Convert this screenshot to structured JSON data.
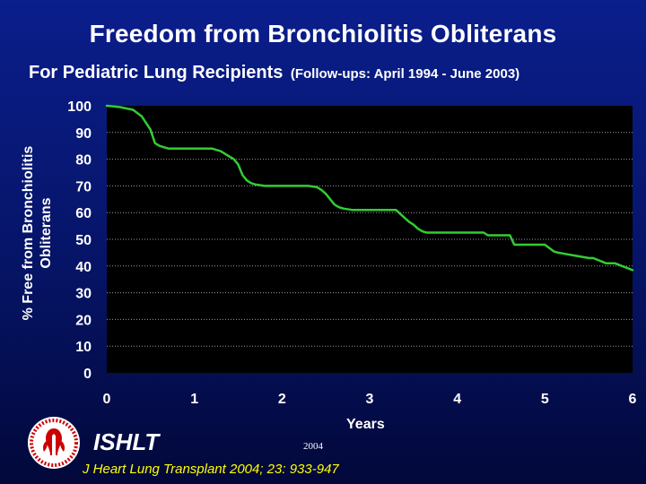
{
  "title": "Freedom from Bronchiolitis Obliterans",
  "subtitle": "For Pediatric Lung Recipients",
  "followup": "(Follow-ups: April 1994 - June 2003)",
  "footer": {
    "org": "ISHLT",
    "year": "2004",
    "citation": "J Heart Lung Transplant 2004; 23: 933-947",
    "logo_icon": "ishlt-seal-icon"
  },
  "colors": {
    "background": "#061466",
    "plot_area": "#000000",
    "line": "#33cc33",
    "text": "#ffffff",
    "citation": "#ffff00"
  },
  "chart_data": {
    "type": "line",
    "xlabel": "Years",
    "ylabel_line1": "% Free from Bronchiolitis",
    "ylabel_line2": "Obliterans",
    "xlim": [
      0,
      6
    ],
    "ylim": [
      0,
      100
    ],
    "x_ticks": [
      "0",
      "1",
      "2",
      "3",
      "4",
      "5",
      "6"
    ],
    "y_ticks": [
      "0",
      "10",
      "20",
      "30",
      "40",
      "50",
      "60",
      "70",
      "80",
      "90",
      "100"
    ],
    "grid": "dotted horizontal",
    "series": [
      {
        "x": [
          0,
          0.15,
          0.3,
          0.4,
          0.5,
          0.55,
          0.6,
          0.7,
          1.0,
          1.2,
          1.3,
          1.4,
          1.45,
          1.5,
          1.55,
          1.6,
          1.65,
          1.7,
          1.8,
          2.0,
          2.2,
          2.3,
          2.4,
          2.45,
          2.5,
          2.55,
          2.6,
          2.65,
          2.7,
          2.8,
          3.0,
          3.2,
          3.3,
          3.35,
          3.4,
          3.45,
          3.5,
          3.55,
          3.6,
          3.65,
          3.7,
          3.8,
          4.0,
          4.2,
          4.3,
          4.35,
          4.5,
          4.6,
          4.65,
          4.9,
          4.95,
          5.0,
          5.1,
          5.15,
          5.5,
          5.55,
          5.7,
          5.75,
          5.8,
          6.0
        ],
        "y": [
          100,
          99.5,
          98.5,
          96,
          91,
          86,
          85,
          84,
          84,
          84,
          83,
          81,
          80,
          78,
          74,
          72,
          71,
          70.5,
          70,
          70,
          70,
          70,
          69.5,
          68.5,
          67,
          65,
          63,
          62,
          61.5,
          61,
          61,
          61,
          61,
          59.5,
          58,
          56.5,
          55.5,
          54,
          53,
          52.5,
          52.5,
          52.5,
          52.5,
          52.5,
          52.5,
          51.5,
          51.5,
          51.5,
          48,
          48,
          48,
          48,
          45.5,
          45,
          43,
          43,
          41,
          41,
          41,
          38.5
        ]
      }
    ]
  }
}
